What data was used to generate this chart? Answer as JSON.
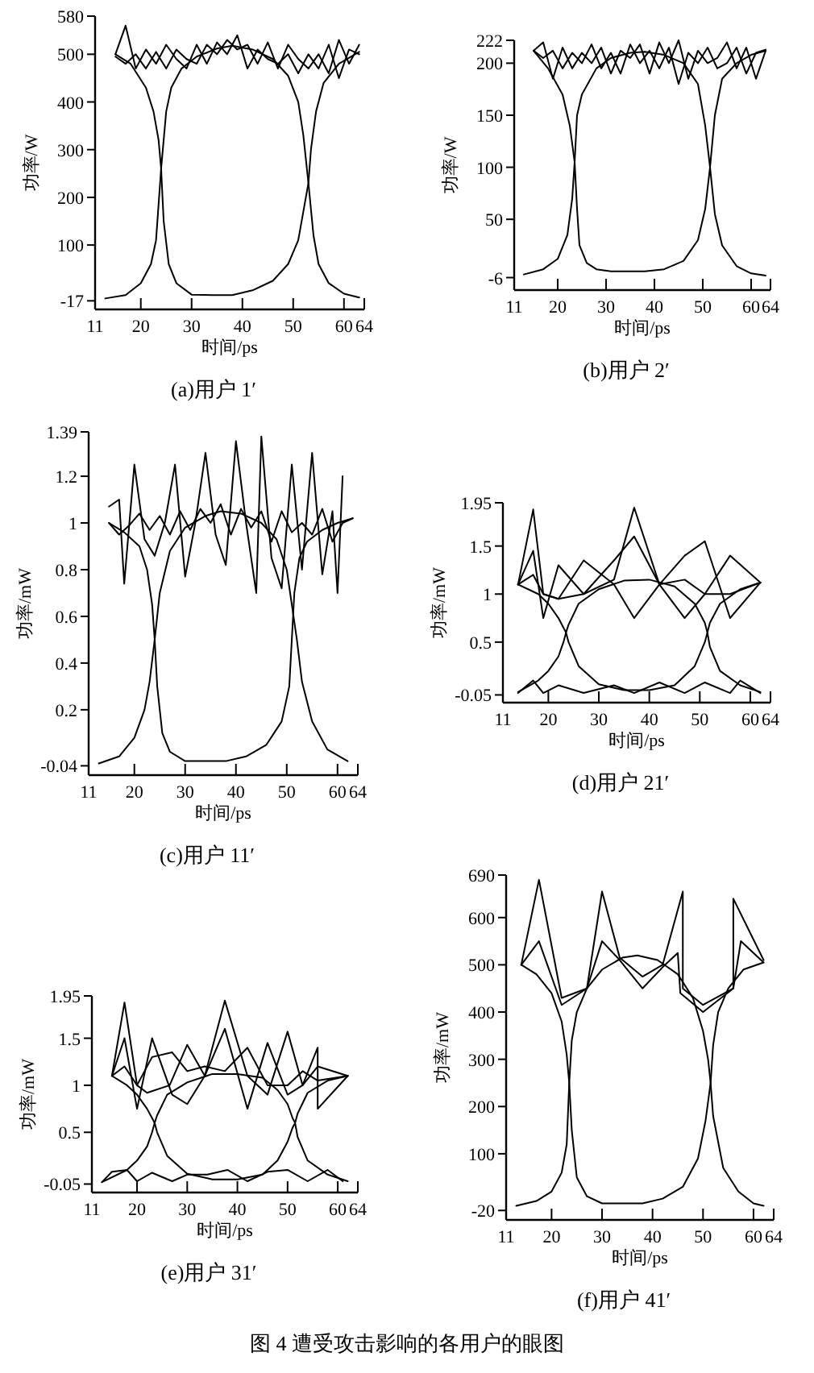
{
  "chart_data": [
    {
      "type": "line",
      "title": "(a)用户 1′",
      "xlabel": "时间/ps",
      "ylabel": "功率/W",
      "xlim": [
        11,
        64
      ],
      "xticks": [
        11,
        20,
        30,
        40,
        50,
        60,
        64
      ],
      "ylim": [
        -35,
        580
      ],
      "yticks": [
        -17,
        100,
        200,
        300,
        400,
        500,
        580
      ],
      "series": [
        {
          "color": "#000000",
          "x": [
            13,
            17,
            20,
            22,
            23,
            24,
            25,
            26,
            28,
            31,
            35,
            38,
            42,
            46,
            49,
            51,
            52,
            53,
            54,
            55,
            57,
            60,
            63
          ],
          "values": [
            -12,
            -5,
            20,
            60,
            110,
            260,
            380,
            430,
            470,
            495,
            512,
            518,
            510,
            490,
            455,
            400,
            330,
            230,
            120,
            60,
            20,
            -2,
            -10
          ]
        },
        {
          "color": "#000000",
          "x": [
            15,
            18,
            21,
            22.5,
            23.5,
            24,
            24.5,
            25.5,
            27,
            30,
            34,
            38,
            42,
            46,
            49,
            51,
            52,
            53,
            53.5,
            54.5,
            56,
            59,
            63
          ],
          "values": [
            500,
            480,
            430,
            380,
            320,
            260,
            150,
            60,
            20,
            -4,
            -5,
            -5,
            5,
            25,
            60,
            110,
            170,
            230,
            300,
            380,
            440,
            480,
            505
          ]
        },
        {
          "color": "#000000",
          "x": [
            15,
            17,
            19,
            21,
            23,
            25,
            27,
            29,
            31,
            33,
            35,
            37,
            39,
            41,
            43,
            45,
            47,
            49,
            51,
            53,
            55,
            57,
            59,
            61,
            63
          ],
          "values": [
            500,
            560,
            470,
            510,
            480,
            520,
            490,
            470,
            520,
            480,
            525,
            500,
            540,
            470,
            510,
            490,
            480,
            500,
            460,
            500,
            470,
            520,
            450,
            510,
            500
          ]
        },
        {
          "color": "#000000",
          "x": [
            15,
            17,
            19,
            21,
            23,
            25,
            27,
            29,
            31,
            33,
            35,
            37,
            39,
            41,
            43,
            45,
            47,
            49,
            51,
            53,
            55,
            57,
            59,
            61,
            63
          ],
          "values": [
            495,
            480,
            500,
            470,
            505,
            470,
            510,
            490,
            480,
            520,
            500,
            530,
            510,
            520,
            480,
            525,
            470,
            520,
            490,
            470,
            500,
            460,
            530,
            480,
            520
          ]
        }
      ]
    },
    {
      "type": "line",
      "title": "(b)用户 2′",
      "xlabel": "时间/ps",
      "ylabel": "功率/W",
      "xlim": [
        11,
        64
      ],
      "xticks": [
        11,
        20,
        30,
        40,
        50,
        60,
        64
      ],
      "ylim": [
        -18,
        222
      ],
      "yticks": [
        -6,
        50,
        100,
        150,
        200,
        222
      ],
      "series": [
        {
          "color": "#000000",
          "x": [
            13,
            17,
            20,
            22,
            23,
            23.5,
            24,
            25,
            28,
            31,
            35,
            38,
            42,
            46,
            49,
            50.5,
            51.5,
            52.5,
            54,
            57,
            60,
            63
          ],
          "values": [
            -3,
            2,
            12,
            35,
            70,
            105,
            150,
            170,
            195,
            205,
            210,
            211,
            208,
            200,
            180,
            140,
            100,
            55,
            25,
            5,
            -2,
            -4
          ]
        },
        {
          "color": "#000000",
          "x": [
            15,
            18,
            21,
            22.5,
            23.5,
            24,
            24.5,
            26,
            28,
            31,
            35,
            38,
            42,
            46,
            49,
            50.5,
            51.5,
            52.5,
            54,
            57,
            60,
            63
          ],
          "values": [
            212,
            195,
            170,
            140,
            105,
            60,
            25,
            8,
            2,
            0,
            0,
            0,
            2,
            10,
            30,
            60,
            100,
            150,
            185,
            200,
            208,
            212
          ]
        },
        {
          "color": "#000000",
          "x": [
            15,
            17,
            19,
            21,
            23,
            25,
            27,
            29,
            31,
            33,
            35,
            37,
            39,
            41,
            43,
            45,
            47,
            49,
            51,
            53,
            55,
            57,
            59,
            61,
            63
          ],
          "values": [
            212,
            220,
            185,
            215,
            195,
            210,
            200,
            215,
            190,
            212,
            205,
            218,
            190,
            220,
            200,
            222,
            185,
            212,
            200,
            205,
            220,
            195,
            215,
            185,
            212
          ]
        },
        {
          "color": "#000000",
          "x": [
            15,
            17,
            19,
            21,
            23,
            25,
            27,
            29,
            31,
            33,
            35,
            37,
            39,
            41,
            43,
            45,
            47,
            49,
            51,
            53,
            55,
            57,
            59,
            61,
            63
          ],
          "values": [
            212,
            205,
            212,
            195,
            210,
            200,
            218,
            195,
            210,
            190,
            218,
            200,
            212,
            195,
            215,
            180,
            210,
            200,
            215,
            195,
            200,
            215,
            190,
            210,
            213
          ]
        }
      ]
    },
    {
      "type": "line",
      "title": "(c)用户 11′",
      "xlabel": "时间/ps",
      "ylabel": "功率/mW",
      "xlim": [
        11,
        64
      ],
      "xticks": [
        11,
        20,
        30,
        40,
        50,
        60,
        64
      ],
      "ylim": [
        -0.08,
        1.39
      ],
      "yticks": [
        -0.04,
        0.2,
        0.4,
        0.6,
        0.8,
        1,
        1.2,
        1.39
      ],
      "series": [
        {
          "color": "#000000",
          "x": [
            13,
            17,
            20,
            22,
            23,
            24,
            25,
            27,
            30,
            34,
            37,
            41,
            45,
            48,
            50,
            51,
            52,
            53,
            55,
            58,
            62
          ],
          "values": [
            -0.03,
            0.0,
            0.08,
            0.2,
            0.32,
            0.5,
            0.7,
            0.88,
            0.98,
            1.03,
            1.05,
            1.04,
            1.0,
            0.93,
            0.8,
            0.65,
            0.5,
            0.32,
            0.15,
            0.03,
            -0.02
          ]
        },
        {
          "color": "#000000",
          "x": [
            15,
            18,
            21,
            22.5,
            23.5,
            24,
            24.5,
            25.5,
            27,
            30,
            34,
            38,
            42,
            46,
            49,
            50.5,
            51,
            51.5,
            52.5,
            54,
            57,
            60,
            63
          ],
          "values": [
            1.0,
            0.96,
            0.9,
            0.8,
            0.65,
            0.5,
            0.3,
            0.1,
            0.02,
            -0.02,
            -0.02,
            -0.02,
            0.0,
            0.05,
            0.15,
            0.3,
            0.5,
            0.7,
            0.85,
            0.92,
            0.97,
            1.0,
            1.02
          ]
        },
        {
          "color": "#000000",
          "x": [
            15,
            17,
            18,
            20,
            22,
            24,
            26,
            28,
            30,
            32,
            34,
            36,
            38,
            40,
            42,
            44,
            45,
            47,
            49,
            51,
            53,
            55,
            57,
            59,
            60,
            61
          ],
          "values": [
            1.07,
            1.1,
            0.74,
            1.25,
            0.93,
            0.86,
            1.0,
            1.25,
            0.77,
            1.0,
            1.3,
            0.95,
            0.82,
            1.35,
            1.0,
            0.7,
            1.37,
            0.85,
            0.72,
            1.25,
            0.8,
            1.3,
            0.78,
            1.05,
            0.7,
            1.2
          ]
        },
        {
          "color": "#000000",
          "x": [
            15,
            17,
            19,
            21,
            23,
            25,
            27,
            29,
            31,
            33,
            35,
            37,
            39,
            41,
            43,
            45,
            47,
            49,
            51,
            53,
            55,
            57,
            59,
            61,
            63
          ],
          "values": [
            1.0,
            0.95,
            0.99,
            1.04,
            0.97,
            1.03,
            0.95,
            1.05,
            0.97,
            1.06,
            1.0,
            1.08,
            0.95,
            1.06,
            0.98,
            1.05,
            0.92,
            1.05,
            0.96,
            1.0,
            0.95,
            1.06,
            0.92,
            1.0,
            1.02
          ]
        }
      ]
    },
    {
      "type": "line",
      "title": "(d)用户 21′",
      "xlabel": "时间/ps",
      "ylabel": "功率/mW",
      "xlim": [
        11,
        64
      ],
      "xticks": [
        11,
        20,
        30,
        40,
        50,
        60,
        64
      ],
      "ylim": [
        -0.13,
        1.95
      ],
      "yticks": [
        -0.05,
        0.5,
        1,
        1.5,
        1.95
      ],
      "series": [
        {
          "color": "#000000",
          "x": [
            14,
            18,
            20,
            22,
            23,
            23.5,
            24,
            26,
            30,
            35,
            40,
            45,
            49,
            51,
            51.5,
            52,
            54,
            58,
            62
          ],
          "values": [
            1.1,
            1.0,
            0.9,
            0.75,
            0.65,
            0.6,
            0.68,
            0.9,
            1.05,
            1.14,
            1.15,
            1.08,
            0.9,
            0.7,
            0.6,
            0.7,
            0.9,
            1.05,
            1.12
          ]
        },
        {
          "color": "#000000",
          "x": [
            14,
            18,
            20,
            22,
            23,
            23.5,
            24,
            26,
            30,
            35,
            40,
            45,
            49,
            51,
            51.5,
            52,
            54,
            58,
            62
          ],
          "values": [
            -0.02,
            0.1,
            0.2,
            0.35,
            0.5,
            0.6,
            0.5,
            0.25,
            0.06,
            0,
            0,
            0.05,
            0.25,
            0.5,
            0.6,
            0.45,
            0.2,
            0.05,
            -0.02
          ]
        },
        {
          "color": "#000000",
          "x": [
            14,
            17,
            19,
            22,
            27,
            33,
            37,
            42,
            47,
            51,
            56,
            62
          ],
          "values": [
            1.1,
            1.88,
            1.0,
            0.95,
            1.0,
            1.15,
            1.9,
            1.1,
            0.75,
            1.0,
            1.0,
            1.12
          ]
        },
        {
          "color": "#000000",
          "x": [
            14,
            17,
            19,
            22,
            27,
            33,
            37,
            42,
            47,
            51,
            56,
            62
          ],
          "values": [
            1.1,
            1.45,
            0.75,
            1.3,
            1.0,
            1.35,
            1.6,
            1.1,
            1.4,
            1.55,
            0.75,
            1.12
          ]
        },
        {
          "color": "#000000",
          "x": [
            14,
            17,
            19,
            22,
            27,
            33,
            37,
            42,
            47,
            51,
            56,
            62
          ],
          "values": [
            1.1,
            1.2,
            1.0,
            0.95,
            1.35,
            1.1,
            0.75,
            1.1,
            1.15,
            1.0,
            1.4,
            1.12
          ]
        },
        {
          "color": "#000000",
          "x": [
            14,
            17,
            19,
            22,
            27,
            33,
            37,
            42,
            47,
            51,
            56,
            58,
            62
          ],
          "values": [
            -0.03,
            0.1,
            -0.03,
            0.05,
            -0.03,
            0.05,
            -0.03,
            0.08,
            -0.03,
            0.08,
            -0.03,
            0.1,
            -0.03
          ]
        }
      ]
    },
    {
      "type": "line",
      "title": "(e)用户 31′",
      "xlabel": "时间/ps",
      "ylabel": "功率/mW",
      "xlim": [
        11,
        64
      ],
      "xticks": [
        11,
        20,
        30,
        40,
        50,
        60,
        64
      ],
      "ylim": [
        -0.14,
        1.95
      ],
      "yticks": [
        -0.05,
        0.5,
        1,
        1.5,
        1.95
      ],
      "series": [
        {
          "color": "#000000",
          "x": [
            15,
            18,
            20,
            22,
            23,
            23.5,
            24,
            26,
            30,
            35,
            40,
            45,
            48,
            50,
            51,
            51.5,
            52,
            54,
            58,
            62
          ],
          "values": [
            1.1,
            1.0,
            0.9,
            0.75,
            0.65,
            0.6,
            0.68,
            0.9,
            1.03,
            1.12,
            1.12,
            1.08,
            0.95,
            0.8,
            0.65,
            0.6,
            0.7,
            0.92,
            1.05,
            1.1
          ]
        },
        {
          "color": "#000000",
          "x": [
            13,
            18,
            20,
            22,
            23,
            23.5,
            24,
            26,
            30,
            35,
            40,
            45,
            48,
            50,
            51,
            51.5,
            52,
            54,
            58,
            62
          ],
          "values": [
            -0.03,
            0.1,
            0.2,
            0.35,
            0.5,
            0.6,
            0.5,
            0.25,
            0.06,
            0,
            0,
            0.05,
            0.2,
            0.4,
            0.55,
            0.6,
            0.45,
            0.2,
            0.05,
            -0.02
          ]
        },
        {
          "color": "#000000",
          "x": [
            15,
            17.5,
            20,
            22,
            26.5,
            30,
            33.5,
            37.5,
            42,
            46,
            50,
            53,
            56,
            56,
            62
          ],
          "values": [
            1.1,
            1.88,
            1.0,
            0.92,
            1.0,
            1.43,
            1.1,
            1.9,
            1.1,
            0.9,
            1.57,
            1.0,
            1.4,
            0.75,
            1.1
          ]
        },
        {
          "color": "#000000",
          "x": [
            15,
            17.5,
            20,
            23,
            27,
            30,
            33.5,
            37.5,
            42,
            46,
            50,
            53,
            56,
            62
          ],
          "values": [
            1.1,
            1.5,
            0.75,
            1.5,
            0.9,
            0.8,
            1.1,
            1.6,
            0.75,
            1.45,
            0.9,
            1.0,
            1.2,
            1.1
          ]
        },
        {
          "color": "#000000",
          "x": [
            15,
            17.5,
            20,
            23,
            27,
            30,
            33.5,
            37.5,
            42,
            46,
            50,
            53,
            56,
            62
          ],
          "values": [
            1.1,
            1.2,
            1.0,
            1.3,
            1.35,
            1.15,
            1.2,
            1.15,
            1.4,
            1.0,
            1.0,
            1.15,
            1.05,
            1.1
          ]
        },
        {
          "color": "#000000",
          "x": [
            13,
            15,
            18,
            20,
            23,
            27,
            30,
            34,
            38,
            42,
            46,
            50,
            54,
            58,
            61
          ],
          "values": [
            -0.03,
            0.08,
            0.1,
            -0.02,
            0.07,
            -0.02,
            0.05,
            0.05,
            0.1,
            -0.02,
            0.08,
            0.1,
            -0.02,
            0.1,
            -0.02
          ]
        }
      ]
    },
    {
      "type": "line",
      "title": "(f)用户 41′",
      "xlabel": "时间/ps",
      "ylabel": "功率/mW",
      "xlim": [
        11,
        64
      ],
      "xticks": [
        11,
        20,
        30,
        40,
        50,
        60,
        64
      ],
      "ylim": [
        -40,
        690
      ],
      "yticks": [
        -20,
        100,
        200,
        300,
        400,
        500,
        600,
        690
      ],
      "series": [
        {
          "color": "#000000",
          "x": [
            13,
            17,
            20,
            22,
            23,
            23.5,
            24,
            25,
            27,
            30,
            34,
            37,
            41,
            45,
            48,
            50,
            51,
            51.5,
            52,
            54,
            57,
            60,
            62
          ],
          "values": [
            -10,
            0,
            20,
            60,
            120,
            250,
            340,
            400,
            450,
            490,
            515,
            520,
            510,
            480,
            430,
            360,
            300,
            250,
            180,
            70,
            20,
            -5,
            -10
          ]
        },
        {
          "color": "#000000",
          "x": [
            14,
            17,
            20,
            22,
            23,
            23.5,
            24,
            25,
            27,
            30,
            34,
            38,
            42,
            46,
            49,
            50.5,
            51.5,
            52,
            53,
            55,
            58,
            62
          ],
          "values": [
            500,
            480,
            440,
            380,
            310,
            250,
            150,
            50,
            10,
            -5,
            -5,
            -5,
            5,
            30,
            90,
            170,
            250,
            330,
            400,
            450,
            490,
            505
          ]
        },
        {
          "color": "#000000",
          "x": [
            14,
            17.5,
            22,
            27,
            30,
            33.5,
            38,
            42,
            46,
            46,
            50,
            56,
            56,
            62
          ],
          "values": [
            500,
            680,
            430,
            450,
            655,
            515,
            475,
            500,
            655,
            450,
            415,
            450,
            640,
            510
          ]
        },
        {
          "color": "#000000",
          "x": [
            14,
            17.5,
            22,
            27,
            30,
            33.5,
            38,
            42,
            45,
            45.5,
            50,
            56,
            57.5,
            62
          ],
          "values": [
            500,
            550,
            415,
            450,
            550,
            510,
            450,
            495,
            525,
            440,
            400,
            450,
            550,
            505
          ]
        }
      ]
    },
    {
      "type": "other",
      "title": "图 4 遭受攻击影响的各用户的眼图"
    }
  ]
}
